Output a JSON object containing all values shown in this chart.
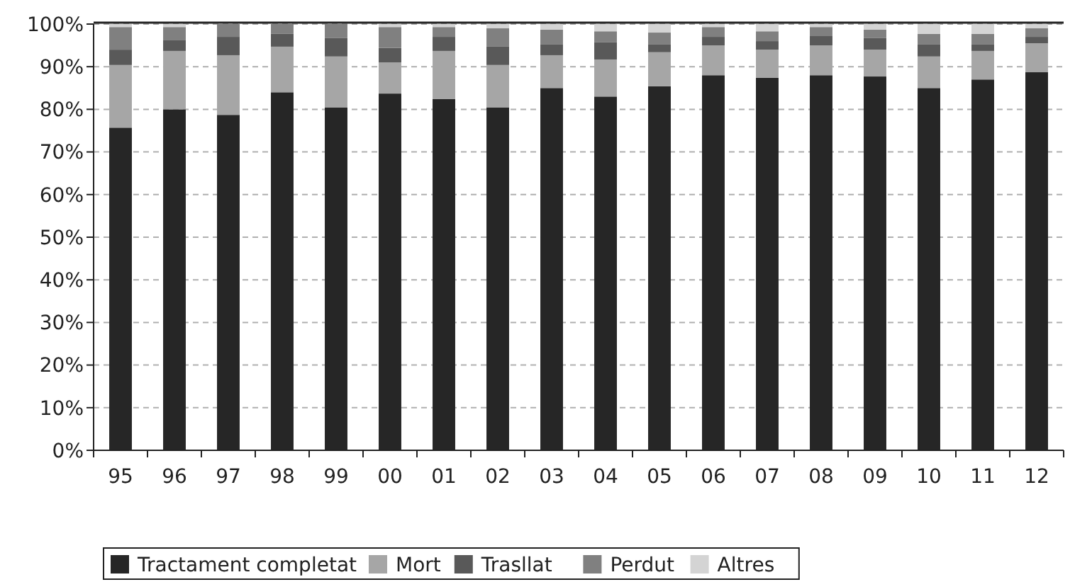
{
  "chart_data": {
    "type": "bar",
    "stacked": true,
    "categories": [
      "95",
      "96",
      "97",
      "98",
      "99",
      "00",
      "01",
      "02",
      "03",
      "04",
      "05",
      "06",
      "07",
      "08",
      "09",
      "10",
      "11",
      "12"
    ],
    "series": [
      {
        "name": "Tractament completat",
        "color": "#262626",
        "values": [
          75.7,
          80,
          78.7,
          84,
          80.4,
          83.7,
          82.4,
          80.4,
          85,
          83,
          85.4,
          88,
          87.4,
          88,
          87.7,
          85,
          87,
          88.7
        ]
      },
      {
        "name": "Mort",
        "color": "#a6a6a6",
        "values": [
          14.7,
          13.7,
          14,
          10.7,
          12,
          7.3,
          11.3,
          10,
          7.7,
          8.7,
          8,
          7,
          6.6,
          7,
          6.3,
          7.4,
          6.7,
          6.8
        ]
      },
      {
        "name": "Trasllat",
        "color": "#595959",
        "values": [
          3.6,
          2.6,
          4.3,
          3,
          4.3,
          3.4,
          3.3,
          4.3,
          2.6,
          4,
          1.9,
          2,
          2,
          2.3,
          2.7,
          2.9,
          1.6,
          1.5
        ]
      },
      {
        "name": "Perdut",
        "color": "#808080",
        "values": [
          5.3,
          3,
          3,
          2.3,
          3.3,
          4.9,
          2.3,
          4.3,
          3.4,
          2.6,
          2.7,
          2.3,
          2.3,
          2,
          2,
          2.4,
          2.4,
          2
        ]
      },
      {
        "name": "Altres",
        "color": "#d4d4d4",
        "values": [
          0.7,
          0.7,
          0,
          0,
          0,
          0.7,
          0.7,
          1,
          1.3,
          1.7,
          2,
          0.7,
          1.7,
          0.7,
          1.3,
          2.3,
          2.3,
          1
        ]
      }
    ],
    "ylim": [
      0,
      100
    ],
    "yticks": [
      {
        "value": 0,
        "label": "0%"
      },
      {
        "value": 10,
        "label": "10%"
      },
      {
        "value": 20,
        "label": "20%"
      },
      {
        "value": 30,
        "label": "30%"
      },
      {
        "value": 40,
        "label": "40%"
      },
      {
        "value": 50,
        "label": "50%"
      },
      {
        "value": 60,
        "label": "60%"
      },
      {
        "value": 70,
        "label": "70%"
      },
      {
        "value": 80,
        "label": "80%"
      },
      {
        "value": 90,
        "label": "90%"
      },
      {
        "value": 100,
        "label": "100%"
      }
    ],
    "grid": "y",
    "legend": "bottom"
  }
}
